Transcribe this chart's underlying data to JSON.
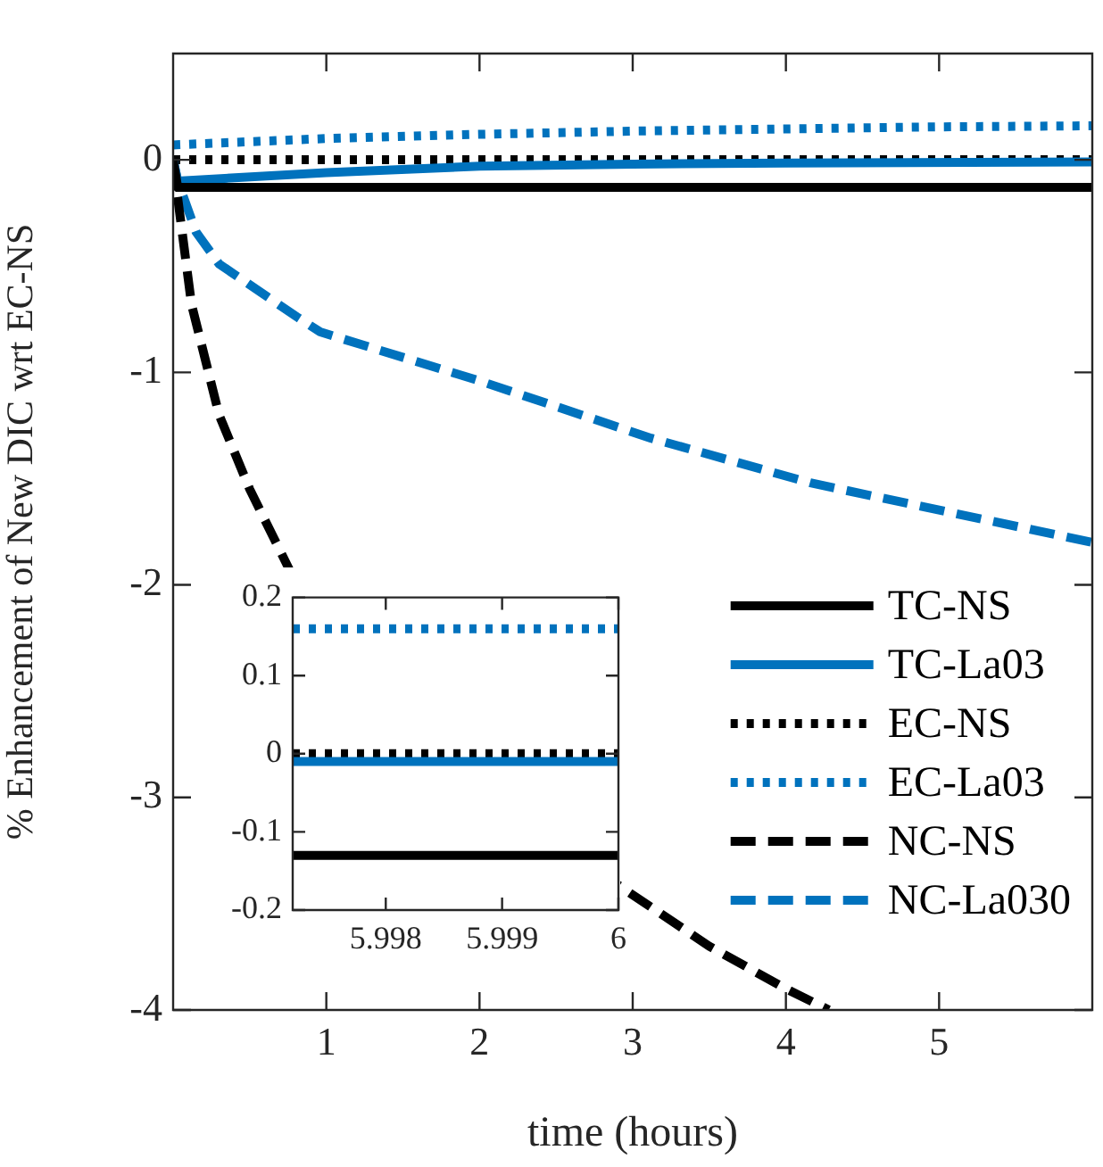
{
  "chart_data": [
    {
      "type": "line",
      "xlabel": "time (hours)",
      "ylabel": "% Enhancement of New DIC wrt EC-NS",
      "xlim": [
        0,
        6
      ],
      "ylim": [
        -4,
        0.5
      ],
      "xticks": [
        1,
        2,
        3,
        4,
        5
      ],
      "yticks": [
        -4,
        -3,
        -2,
        -1,
        0
      ],
      "grid": false,
      "legend": "bottom right",
      "marker": "none",
      "series": [
        {
          "name": "TC-NS",
          "color": "#000000",
          "line_style": "solid",
          "x": [
            0,
            0.03,
            1,
            3,
            6
          ],
          "values": [
            0,
            -0.13,
            -0.13,
            -0.13,
            -0.13
          ]
        },
        {
          "name": "TC-La03",
          "color": "#0072bd",
          "line_style": "solid",
          "x": [
            0,
            0.03,
            1,
            2,
            3,
            4,
            6
          ],
          "values": [
            0,
            -0.1,
            -0.06,
            -0.03,
            -0.02,
            -0.015,
            -0.01
          ]
        },
        {
          "name": "EC-NS",
          "color": "#000000",
          "line_style": "dotted",
          "x": [
            0,
            6
          ],
          "values": [
            0,
            0
          ]
        },
        {
          "name": "EC-La03",
          "color": "#0072bd",
          "line_style": "dotted",
          "x": [
            0,
            1,
            2,
            3,
            4,
            5,
            6
          ],
          "values": [
            0.07,
            0.1,
            0.12,
            0.135,
            0.145,
            0.155,
            0.16
          ]
        },
        {
          "name": "NC-NS",
          "color": "#000000",
          "line_style": "dashed",
          "x": [
            0,
            0.03,
            0.12,
            0.3,
            0.5,
            0.76,
            2.9,
            3.5,
            4,
            4.28
          ],
          "values": [
            0,
            -0.18,
            -0.68,
            -1.2,
            -1.55,
            -1.93,
            -3.41,
            -3.7,
            -3.9,
            -4
          ]
        },
        {
          "name": "NC-La030",
          "color": "#0072bd",
          "line_style": "dashed",
          "x": [
            0,
            0.03,
            0.15,
            0.3,
            0.81,
            0.96,
            2,
            3.12,
            4.16,
            6
          ],
          "values": [
            0,
            -0.1,
            -0.34,
            -0.49,
            -0.74,
            -0.81,
            -1.04,
            -1.31,
            -1.52,
            -1.8
          ]
        }
      ]
    },
    {
      "type": "line",
      "xlim": [
        5.9972,
        6
      ],
      "ylim": [
        -0.2,
        0.2
      ],
      "xticks": [
        5.998,
        5.999,
        6
      ],
      "yticks": [
        -0.2,
        -0.1,
        0,
        0.1,
        0.2
      ],
      "grid": false,
      "legend": false,
      "marker": "none",
      "series": [
        {
          "color": "#000000",
          "line_style": "solid",
          "x": [
            5.9972,
            6
          ],
          "values": [
            -0.13,
            -0.13
          ]
        },
        {
          "color": "#0072bd",
          "line_style": "solid",
          "x": [
            5.9972,
            6
          ],
          "values": [
            -0.01,
            -0.01
          ]
        },
        {
          "color": "#000000",
          "line_style": "dotted",
          "x": [
            5.9972,
            6
          ],
          "values": [
            0,
            0
          ]
        },
        {
          "color": "#0072bd",
          "line_style": "dotted",
          "x": [
            5.9972,
            6
          ],
          "values": [
            0.16,
            0.16
          ]
        }
      ]
    }
  ]
}
